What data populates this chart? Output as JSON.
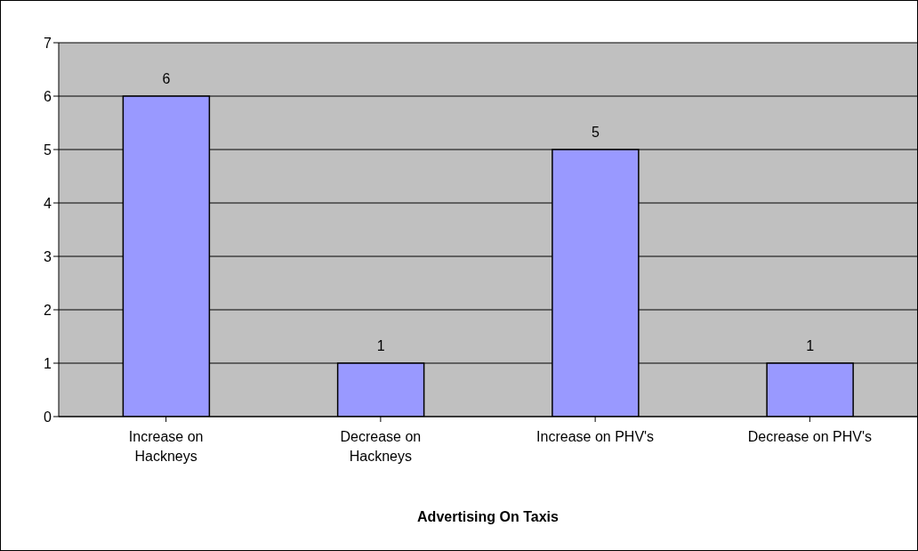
{
  "chart_data": {
    "type": "bar",
    "xlabel": "Advertising On Taxis",
    "categories": [
      "Increase on Hackneys",
      "Decrease on Hackneys",
      "Increase on PHV's",
      "Decrease on PHV's"
    ],
    "values": [
      6,
      1,
      5,
      1
    ],
    "color": "#9999ff",
    "ylim": [
      0,
      7
    ],
    "yticks": [
      0,
      1,
      2,
      3,
      4,
      5,
      6,
      7
    ],
    "grid": "y",
    "data_labels": true
  }
}
